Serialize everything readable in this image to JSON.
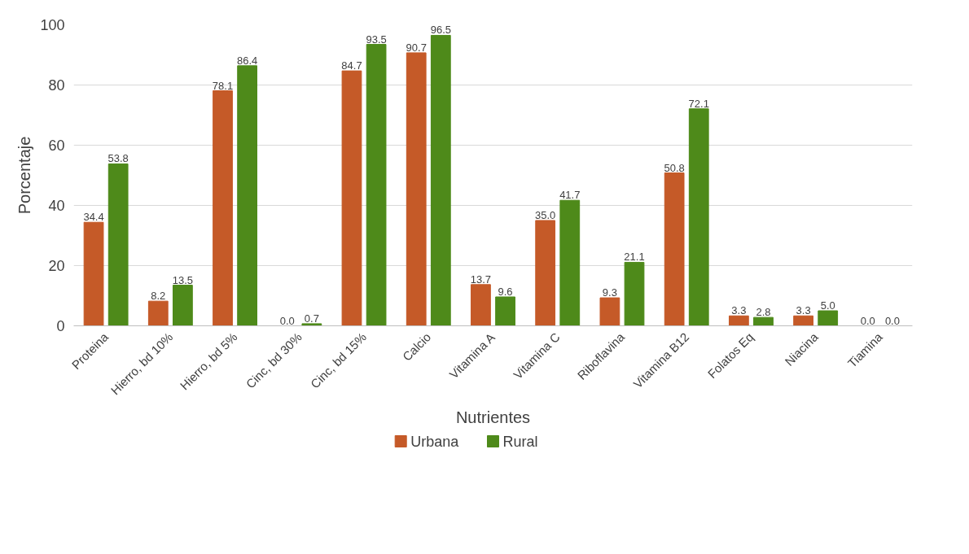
{
  "chart_data": {
    "type": "bar",
    "xlabel": "Nutrientes",
    "ylabel": "Porcentaje",
    "categories": [
      "Proteina",
      "Hierro, bd 10%",
      "Hierro, bd 5%",
      "Cinc, bd 30%",
      "Cinc, bd 15%",
      "Calcio",
      "Vitamina A",
      "Vitamina C",
      "Riboflavina",
      "Vitamina B12",
      "Folatos Eq",
      "Niacina",
      "Tiamina"
    ],
    "series": [
      {
        "name": "Urbana",
        "color": "#c55a28",
        "values": [
          34.4,
          8.2,
          78.1,
          0.0,
          84.7,
          90.7,
          13.7,
          35.0,
          9.3,
          50.8,
          3.3,
          3.3,
          0.0
        ],
        "value_labels": [
          "34.4",
          "8.2",
          "78.1",
          "0.0",
          "84.7",
          "90.7",
          "13.7",
          "35.0",
          "9.3",
          "50.8",
          "3.3",
          "3.3",
          "0.0"
        ]
      },
      {
        "name": "Rural",
        "color": "#4e8a1a",
        "values": [
          53.8,
          13.5,
          86.4,
          0.7,
          93.5,
          96.5,
          9.6,
          41.7,
          21.1,
          72.1,
          2.8,
          5.0,
          0.0
        ],
        "value_labels": [
          "53.8",
          "13.5",
          "86.4",
          "0.7",
          "93.5",
          "96.5",
          "9.6",
          "41.7",
          "21.1",
          "72.1",
          "2.8",
          "5.0",
          "0.0"
        ]
      }
    ],
    "ylim": [
      0,
      100
    ],
    "yticks": [
      0,
      20,
      40,
      60,
      80,
      100
    ],
    "grid": "y",
    "legend": "bottom",
    "data_labels": true
  }
}
